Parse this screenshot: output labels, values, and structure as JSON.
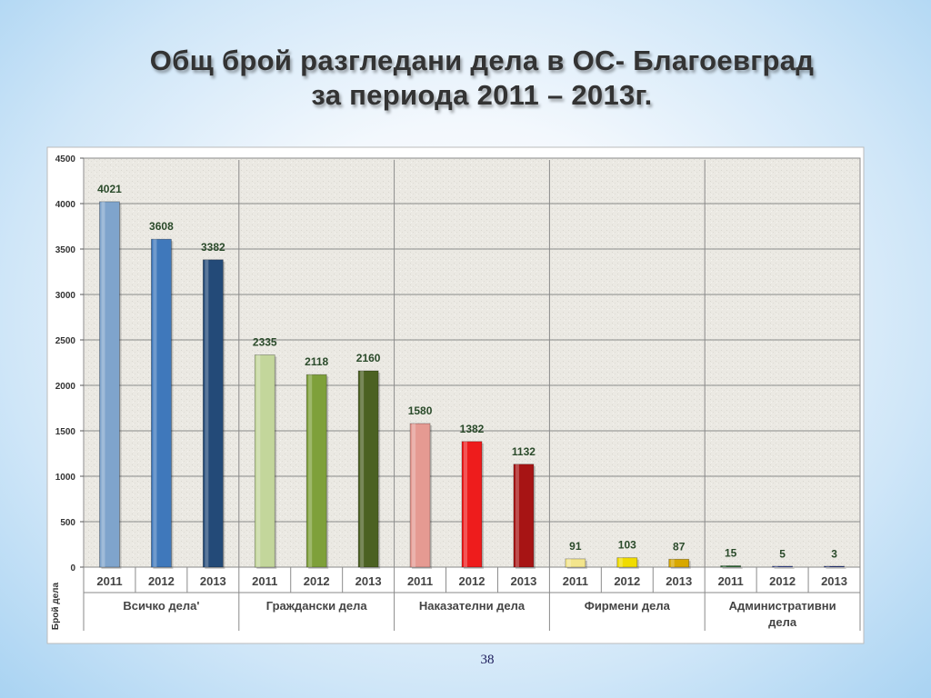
{
  "slide": {
    "title_line1": "Общ брой разгледани дела в ОС- Благоевград",
    "title_line2": "за периода 2011 – 2013г.",
    "page_number": "38"
  },
  "chart_data": {
    "type": "bar",
    "ylabel": "Брой дела",
    "ylim": [
      0,
      4500
    ],
    "yticks": [
      0,
      500,
      1000,
      1500,
      2000,
      2500,
      3000,
      3500,
      4000,
      4500
    ],
    "grid": true,
    "groups": [
      {
        "name": "Всичко дела'",
        "years": [
          "2011",
          "2012",
          "2013"
        ],
        "values": [
          4021,
          3608,
          3382
        ],
        "colors": [
          "#7fa4cc",
          "#3f78bb",
          "#234a78"
        ]
      },
      {
        "name": "Граждански дела",
        "years": [
          "2011",
          "2012",
          "2013"
        ],
        "values": [
          2335,
          2118,
          2160
        ],
        "colors": [
          "#c3d69b",
          "#7ea03a",
          "#4b6122"
        ]
      },
      {
        "name": "Наказателни дела",
        "years": [
          "2011",
          "2012",
          "2013"
        ],
        "values": [
          1580,
          1382,
          1132
        ],
        "colors": [
          "#e59a92",
          "#ee1c1c",
          "#a71414"
        ]
      },
      {
        "name": "Фирмени дела",
        "years": [
          "2011",
          "2012",
          "2013"
        ],
        "values": [
          91,
          103,
          87
        ],
        "colors": [
          "#f3e58c",
          "#f0dc00",
          "#d8a800"
        ]
      },
      {
        "name": "Административни дела",
        "years": [
          "2011",
          "2012",
          "2013"
        ],
        "values": [
          15,
          5,
          3
        ],
        "colors": [
          "#2e6e35",
          "#3b4fa8",
          "#2c3f90"
        ]
      }
    ]
  }
}
